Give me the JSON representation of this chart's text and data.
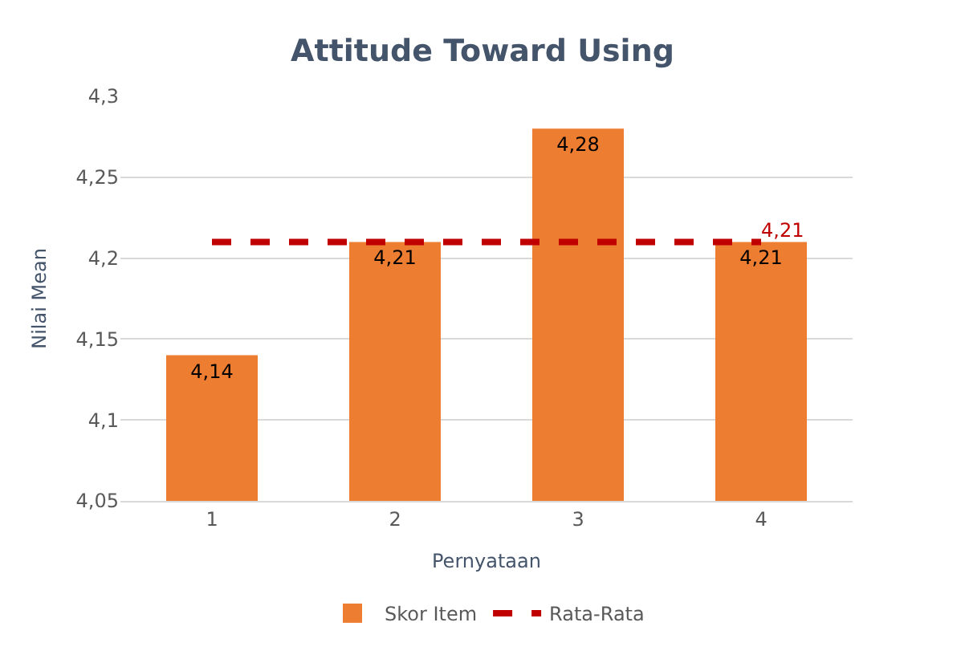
{
  "chart_data": {
    "type": "bar",
    "title": "Attitude Toward Using",
    "xlabel": "Pernyataan",
    "ylabel": "Nilai Mean",
    "categories": [
      "1",
      "2",
      "3",
      "4"
    ],
    "series": [
      {
        "name": "Skor Item",
        "color": "#ed7d31",
        "values": [
          4.14,
          4.21,
          4.28,
          4.21
        ],
        "value_labels": [
          "4,14",
          "4,21",
          "4,28",
          "4,21"
        ]
      },
      {
        "name": "Rata-Rata",
        "type": "line",
        "color": "#c00000",
        "line_style": "dashed",
        "values": [
          4.21,
          4.21,
          4.21,
          4.21
        ],
        "value_labels": [
          null,
          null,
          null,
          "4,21"
        ]
      }
    ],
    "ylim": [
      4.05,
      4.3
    ],
    "yticks": [
      {
        "value": 4.05,
        "label": "4,05"
      },
      {
        "value": 4.1,
        "label": "4,1"
      },
      {
        "value": 4.15,
        "label": "4,15"
      },
      {
        "value": 4.2,
        "label": "4,2"
      },
      {
        "value": 4.25,
        "label": "4,25"
      },
      {
        "value": 4.3,
        "label": "4,3"
      }
    ],
    "grid": "y",
    "legend": "bottom"
  }
}
